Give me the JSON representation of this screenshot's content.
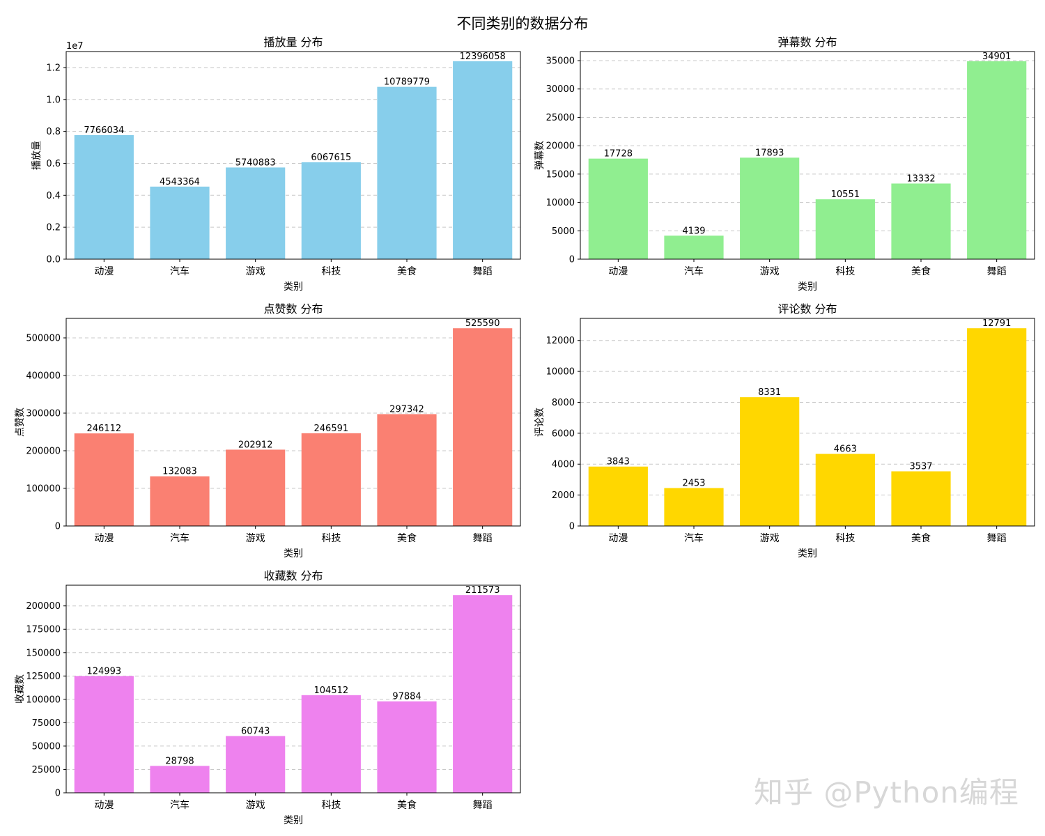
{
  "figure": {
    "suptitle": "不同类别的数据分布",
    "watermark": "知乎 @Python编程"
  },
  "chart_data": [
    {
      "type": "bar",
      "title": "播放量 分布",
      "xlabel": "类别",
      "ylabel": "播放量",
      "offset_label": "1e7",
      "categories": [
        "动漫",
        "汽车",
        "游戏",
        "科技",
        "美食",
        "舞蹈"
      ],
      "values": [
        7766034,
        4543364,
        5740883,
        6067615,
        10789779,
        12396058
      ],
      "ylim": [
        0,
        13000000
      ],
      "yticks": [
        0,
        2000000,
        4000000,
        6000000,
        8000000,
        10000000,
        12000000
      ],
      "ytick_labels": [
        "0.0",
        "0.2",
        "0.4",
        "0.6",
        "0.8",
        "1.0",
        "1.2"
      ],
      "color": "#87CEEB",
      "grid": "y-dashed"
    },
    {
      "type": "bar",
      "title": "弹幕数 分布",
      "xlabel": "类别",
      "ylabel": "弹幕数",
      "categories": [
        "动漫",
        "汽车",
        "游戏",
        "科技",
        "美食",
        "舞蹈"
      ],
      "values": [
        17728,
        4139,
        17893,
        10551,
        13332,
        34901
      ],
      "ylim": [
        0,
        36600
      ],
      "yticks": [
        0,
        5000,
        10000,
        15000,
        20000,
        25000,
        30000,
        35000
      ],
      "ytick_labels": [
        "0",
        "5000",
        "10000",
        "15000",
        "20000",
        "25000",
        "30000",
        "35000"
      ],
      "color": "#90EE90",
      "grid": "y-dashed"
    },
    {
      "type": "bar",
      "title": "点赞数 分布",
      "xlabel": "类别",
      "ylabel": "点赞数",
      "categories": [
        "动漫",
        "汽车",
        "游戏",
        "科技",
        "美食",
        "舞蹈"
      ],
      "values": [
        246112,
        132083,
        202912,
        246591,
        297342,
        525590
      ],
      "ylim": [
        0,
        551870
      ],
      "yticks": [
        0,
        100000,
        200000,
        300000,
        400000,
        500000
      ],
      "ytick_labels": [
        "0",
        "100000",
        "200000",
        "300000",
        "400000",
        "500000"
      ],
      "color": "#FA8072",
      "grid": "y-dashed"
    },
    {
      "type": "bar",
      "title": "评论数 分布",
      "xlabel": "类别",
      "ylabel": "评论数",
      "categories": [
        "动漫",
        "汽车",
        "游戏",
        "科技",
        "美食",
        "舞蹈"
      ],
      "values": [
        3843,
        2453,
        8331,
        4663,
        3537,
        12791
      ],
      "ylim": [
        0,
        13430
      ],
      "yticks": [
        0,
        2000,
        4000,
        6000,
        8000,
        10000,
        12000
      ],
      "ytick_labels": [
        "0",
        "2000",
        "4000",
        "6000",
        "8000",
        "10000",
        "12000"
      ],
      "color": "#FFD700",
      "grid": "y-dashed"
    },
    {
      "type": "bar",
      "title": "收藏数 分布",
      "xlabel": "类别",
      "ylabel": "收藏数",
      "categories": [
        "动漫",
        "汽车",
        "游戏",
        "科技",
        "美食",
        "舞蹈"
      ],
      "values": [
        124993,
        28798,
        60743,
        104512,
        97884,
        211573
      ],
      "ylim": [
        0,
        222150
      ],
      "yticks": [
        0,
        25000,
        50000,
        75000,
        100000,
        125000,
        150000,
        175000,
        200000
      ],
      "ytick_labels": [
        "0",
        "25000",
        "50000",
        "75000",
        "100000",
        "125000",
        "150000",
        "175000",
        "200000"
      ],
      "color": "#EE82EE",
      "grid": "y-dashed"
    }
  ]
}
